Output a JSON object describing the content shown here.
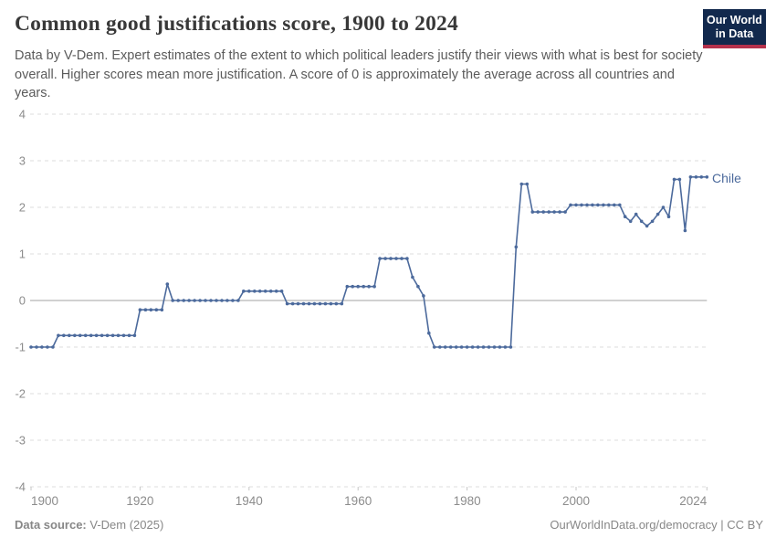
{
  "header": {
    "title": "Common good justifications score, 1900 to 2024",
    "subtitle": "Data by V-Dem. Expert estimates of the extent to which political leaders justify their views with what is best for society overall. Higher scores mean more justification. A score of 0 is approximately the average across all countries and years."
  },
  "logo": {
    "line1": "Our World",
    "line2": "in Data",
    "bg_color": "#12294d",
    "accent_color": "#b5314c"
  },
  "footer": {
    "source_label": "Data source:",
    "source_value": " V-Dem (2025)",
    "right_text": "OurWorldInData.org/democracy | CC BY"
  },
  "chart_data": {
    "type": "line",
    "title": "Common good justifications score, 1900 to 2024",
    "entity": "Chile",
    "color": "#4c6a9c",
    "xlabel": "",
    "ylabel": "",
    "xlim": [
      1900,
      2024
    ],
    "ylim": [
      -4,
      4
    ],
    "yticks": [
      4,
      3,
      2,
      1,
      0,
      -1,
      -2,
      -3,
      -4
    ],
    "xticks": [
      1900,
      1920,
      1940,
      1960,
      1980,
      2000,
      2024
    ],
    "grid": "horizontal dashed, solid zero line",
    "legend": "line-end label",
    "years": [
      1900,
      1901,
      1902,
      1903,
      1904,
      1905,
      1906,
      1907,
      1908,
      1909,
      1910,
      1911,
      1912,
      1913,
      1914,
      1915,
      1916,
      1917,
      1918,
      1919,
      1920,
      1921,
      1922,
      1923,
      1924,
      1925,
      1926,
      1927,
      1928,
      1929,
      1930,
      1931,
      1932,
      1933,
      1934,
      1935,
      1936,
      1937,
      1938,
      1939,
      1940,
      1941,
      1942,
      1943,
      1944,
      1945,
      1946,
      1947,
      1948,
      1949,
      1950,
      1951,
      1952,
      1953,
      1954,
      1955,
      1956,
      1957,
      1958,
      1959,
      1960,
      1961,
      1962,
      1963,
      1964,
      1965,
      1966,
      1967,
      1968,
      1969,
      1970,
      1971,
      1972,
      1973,
      1974,
      1975,
      1976,
      1977,
      1978,
      1979,
      1980,
      1981,
      1982,
      1983,
      1984,
      1985,
      1986,
      1987,
      1988,
      1989,
      1990,
      1991,
      1992,
      1993,
      1994,
      1995,
      1996,
      1997,
      1998,
      1999,
      2000,
      2001,
      2002,
      2003,
      2004,
      2005,
      2006,
      2007,
      2008,
      2009,
      2010,
      2011,
      2012,
      2013,
      2014,
      2015,
      2016,
      2017,
      2018,
      2019,
      2020,
      2021,
      2022,
      2023,
      2024
    ],
    "values": [
      -1,
      -1,
      -1,
      -1,
      -1,
      -0.75,
      -0.75,
      -0.75,
      -0.75,
      -0.75,
      -0.75,
      -0.75,
      -0.75,
      -0.75,
      -0.75,
      -0.75,
      -0.75,
      -0.75,
      -0.75,
      -0.75,
      -0.2,
      -0.2,
      -0.2,
      -0.2,
      -0.2,
      0.35,
      0,
      0,
      0,
      0,
      0,
      0,
      0,
      0,
      0,
      0,
      0,
      0,
      0,
      0.2,
      0.2,
      0.2,
      0.2,
      0.2,
      0.2,
      0.2,
      0.2,
      -0.07,
      -0.07,
      -0.07,
      -0.07,
      -0.07,
      -0.07,
      -0.07,
      -0.07,
      -0.07,
      -0.07,
      -0.07,
      0.3,
      0.3,
      0.3,
      0.3,
      0.3,
      0.3,
      0.9,
      0.9,
      0.9,
      0.9,
      0.9,
      0.9,
      0.5,
      0.3,
      0.1,
      -0.7,
      -1,
      -1,
      -1,
      -1,
      -1,
      -1,
      -1,
      -1,
      -1,
      -1,
      -1,
      -1,
      -1,
      -1,
      -1,
      1.15,
      2.5,
      2.5,
      1.9,
      1.9,
      1.9,
      1.9,
      1.9,
      1.9,
      1.9,
      2.05,
      2.05,
      2.05,
      2.05,
      2.05,
      2.05,
      2.05,
      2.05,
      2.05,
      2.05,
      1.8,
      1.7,
      1.85,
      1.7,
      1.6,
      1.7,
      1.85,
      2.0,
      1.8,
      2.6,
      2.6,
      1.5,
      2.65,
      2.65,
      2.65,
      2.65
    ]
  }
}
